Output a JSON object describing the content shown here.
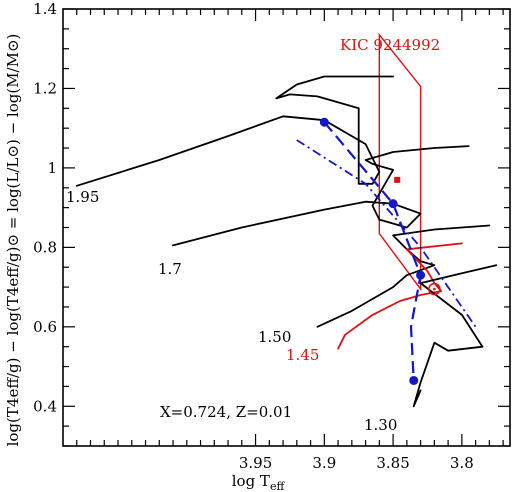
{
  "chart_data": {
    "type": "line",
    "title": "",
    "xlabel": "log T",
    "xlabel_sub": "eff",
    "ylabel": "log(T4eff/g) − log(T4eff/g)⊙ = log(L/L⊙) − log(M/M⊙)",
    "xlim": [
      4.09,
      3.765
    ],
    "ylim": [
      0.3,
      1.4
    ],
    "x_reversed": true,
    "x_ticks": [
      3.95,
      3.9,
      3.85,
      3.8
    ],
    "x_tick_labels": [
      "3.95",
      "3.9",
      "3.85",
      "3.8"
    ],
    "y_ticks": [
      0.4,
      0.6,
      0.8,
      1.0,
      1.2,
      1.4
    ],
    "y_tick_labels": [
      "0.4",
      "0.6",
      "0.8",
      "1",
      "1.2",
      "1.4"
    ],
    "annotation_composition": "X=0.724, Z=0.01",
    "object_label": "KIC 9244992",
    "colors": {
      "black_track": "#000000",
      "red_track": "#dd1111",
      "isochrone": "#1515cc",
      "box": "#dd1111"
    },
    "series": [
      {
        "name": "1.95",
        "color": "#000000",
        "label": "1.95",
        "points": [
          [
            4.08,
            0.955
          ],
          [
            4.02,
            1.02
          ],
          [
            3.97,
            1.08
          ],
          [
            3.93,
            1.13
          ],
          [
            3.9,
            1.12
          ],
          [
            3.87,
            1.06
          ],
          [
            3.86,
            0.99
          ],
          [
            3.865,
            0.96
          ],
          [
            3.875,
            0.96
          ],
          [
            3.875,
            1.15
          ],
          [
            3.905,
            1.18
          ],
          [
            3.925,
            1.185
          ],
          [
            3.935,
            1.175
          ],
          [
            3.92,
            1.21
          ],
          [
            3.9,
            1.23
          ],
          [
            3.88,
            1.23
          ],
          [
            3.85,
            1.23
          ]
        ]
      },
      {
        "name": "1.7",
        "color": "#000000",
        "label": "1.7",
        "points": [
          [
            4.01,
            0.805
          ],
          [
            3.96,
            0.85
          ],
          [
            3.9,
            0.895
          ],
          [
            3.87,
            0.915
          ],
          [
            3.85,
            0.91
          ],
          [
            3.83,
            0.885
          ],
          [
            3.84,
            0.85
          ],
          [
            3.86,
            0.87
          ],
          [
            3.865,
            0.905
          ],
          [
            3.85,
            0.995
          ],
          [
            3.865,
            1.01
          ],
          [
            3.87,
            1.02
          ],
          [
            3.85,
            1.04
          ],
          [
            3.82,
            1.05
          ],
          [
            3.795,
            1.055
          ]
        ]
      },
      {
        "name": "1.50",
        "color": "#000000",
        "label": "1.50",
        "points": [
          [
            3.905,
            0.6
          ],
          [
            3.88,
            0.64
          ],
          [
            3.85,
            0.7
          ],
          [
            3.84,
            0.73
          ],
          [
            3.82,
            0.755
          ],
          [
            3.83,
            0.765
          ],
          [
            3.84,
            0.795
          ],
          [
            3.85,
            0.83
          ],
          [
            3.82,
            0.845
          ],
          [
            3.78,
            0.855
          ]
        ]
      },
      {
        "name": "1.45",
        "color": "#dd1111",
        "label": "1.45",
        "points": [
          [
            3.89,
            0.545
          ],
          [
            3.885,
            0.58
          ],
          [
            3.865,
            0.63
          ],
          [
            3.845,
            0.665
          ],
          [
            3.83,
            0.68
          ],
          [
            3.815,
            0.69
          ],
          [
            3.82,
            0.71
          ],
          [
            3.825,
            0.74
          ],
          [
            3.84,
            0.795
          ],
          [
            3.8,
            0.81
          ]
        ]
      },
      {
        "name": "1.30",
        "color": "#000000",
        "label": "1.30",
        "points": [
          [
            3.83,
            0.44
          ],
          [
            3.835,
            0.4
          ],
          [
            3.83,
            0.46
          ],
          [
            3.82,
            0.56
          ],
          [
            3.81,
            0.54
          ],
          [
            3.785,
            0.55
          ],
          [
            3.8,
            0.63
          ],
          [
            3.83,
            0.71
          ],
          [
            3.8,
            0.735
          ],
          [
            3.775,
            0.755
          ]
        ]
      },
      {
        "name": "isochrone-dashed",
        "color": "#1515cc",
        "style": "dashed",
        "points": [
          [
            3.9,
            1.115
          ],
          [
            3.85,
            0.91
          ],
          [
            3.83,
            0.73
          ],
          [
            3.837,
            0.6
          ],
          [
            3.835,
            0.465
          ]
        ]
      },
      {
        "name": "isochrone-dashdot",
        "color": "#1515cc",
        "style": "dashdot",
        "points": [
          [
            3.92,
            1.07
          ],
          [
            3.87,
            0.96
          ],
          [
            3.83,
            0.8
          ],
          [
            3.81,
            0.7
          ],
          [
            3.79,
            0.6
          ]
        ]
      }
    ],
    "markers": [
      {
        "name": "blue-dot-1",
        "x": 3.9,
        "y": 1.115,
        "shape": "circle-filled",
        "color": "#1515cc"
      },
      {
        "name": "blue-dot-2",
        "x": 3.85,
        "y": 0.91,
        "shape": "circle-filled",
        "color": "#1515cc"
      },
      {
        "name": "blue-dot-3",
        "x": 3.83,
        "y": 0.73,
        "shape": "circle-filled",
        "color": "#1515cc"
      },
      {
        "name": "blue-dot-4",
        "x": 3.835,
        "y": 0.465,
        "shape": "circle-filled",
        "color": "#1515cc"
      },
      {
        "name": "red-open-circle",
        "x": 3.82,
        "y": 0.695,
        "shape": "circle-open",
        "color": "#dd1111"
      },
      {
        "name": "red-square",
        "x": 3.847,
        "y": 0.97,
        "shape": "square",
        "color": "#dd1111"
      }
    ],
    "error_box": [
      [
        3.86,
        1.335
      ],
      [
        3.83,
        1.205
      ],
      [
        3.83,
        0.695
      ],
      [
        3.86,
        0.835
      ]
    ]
  }
}
